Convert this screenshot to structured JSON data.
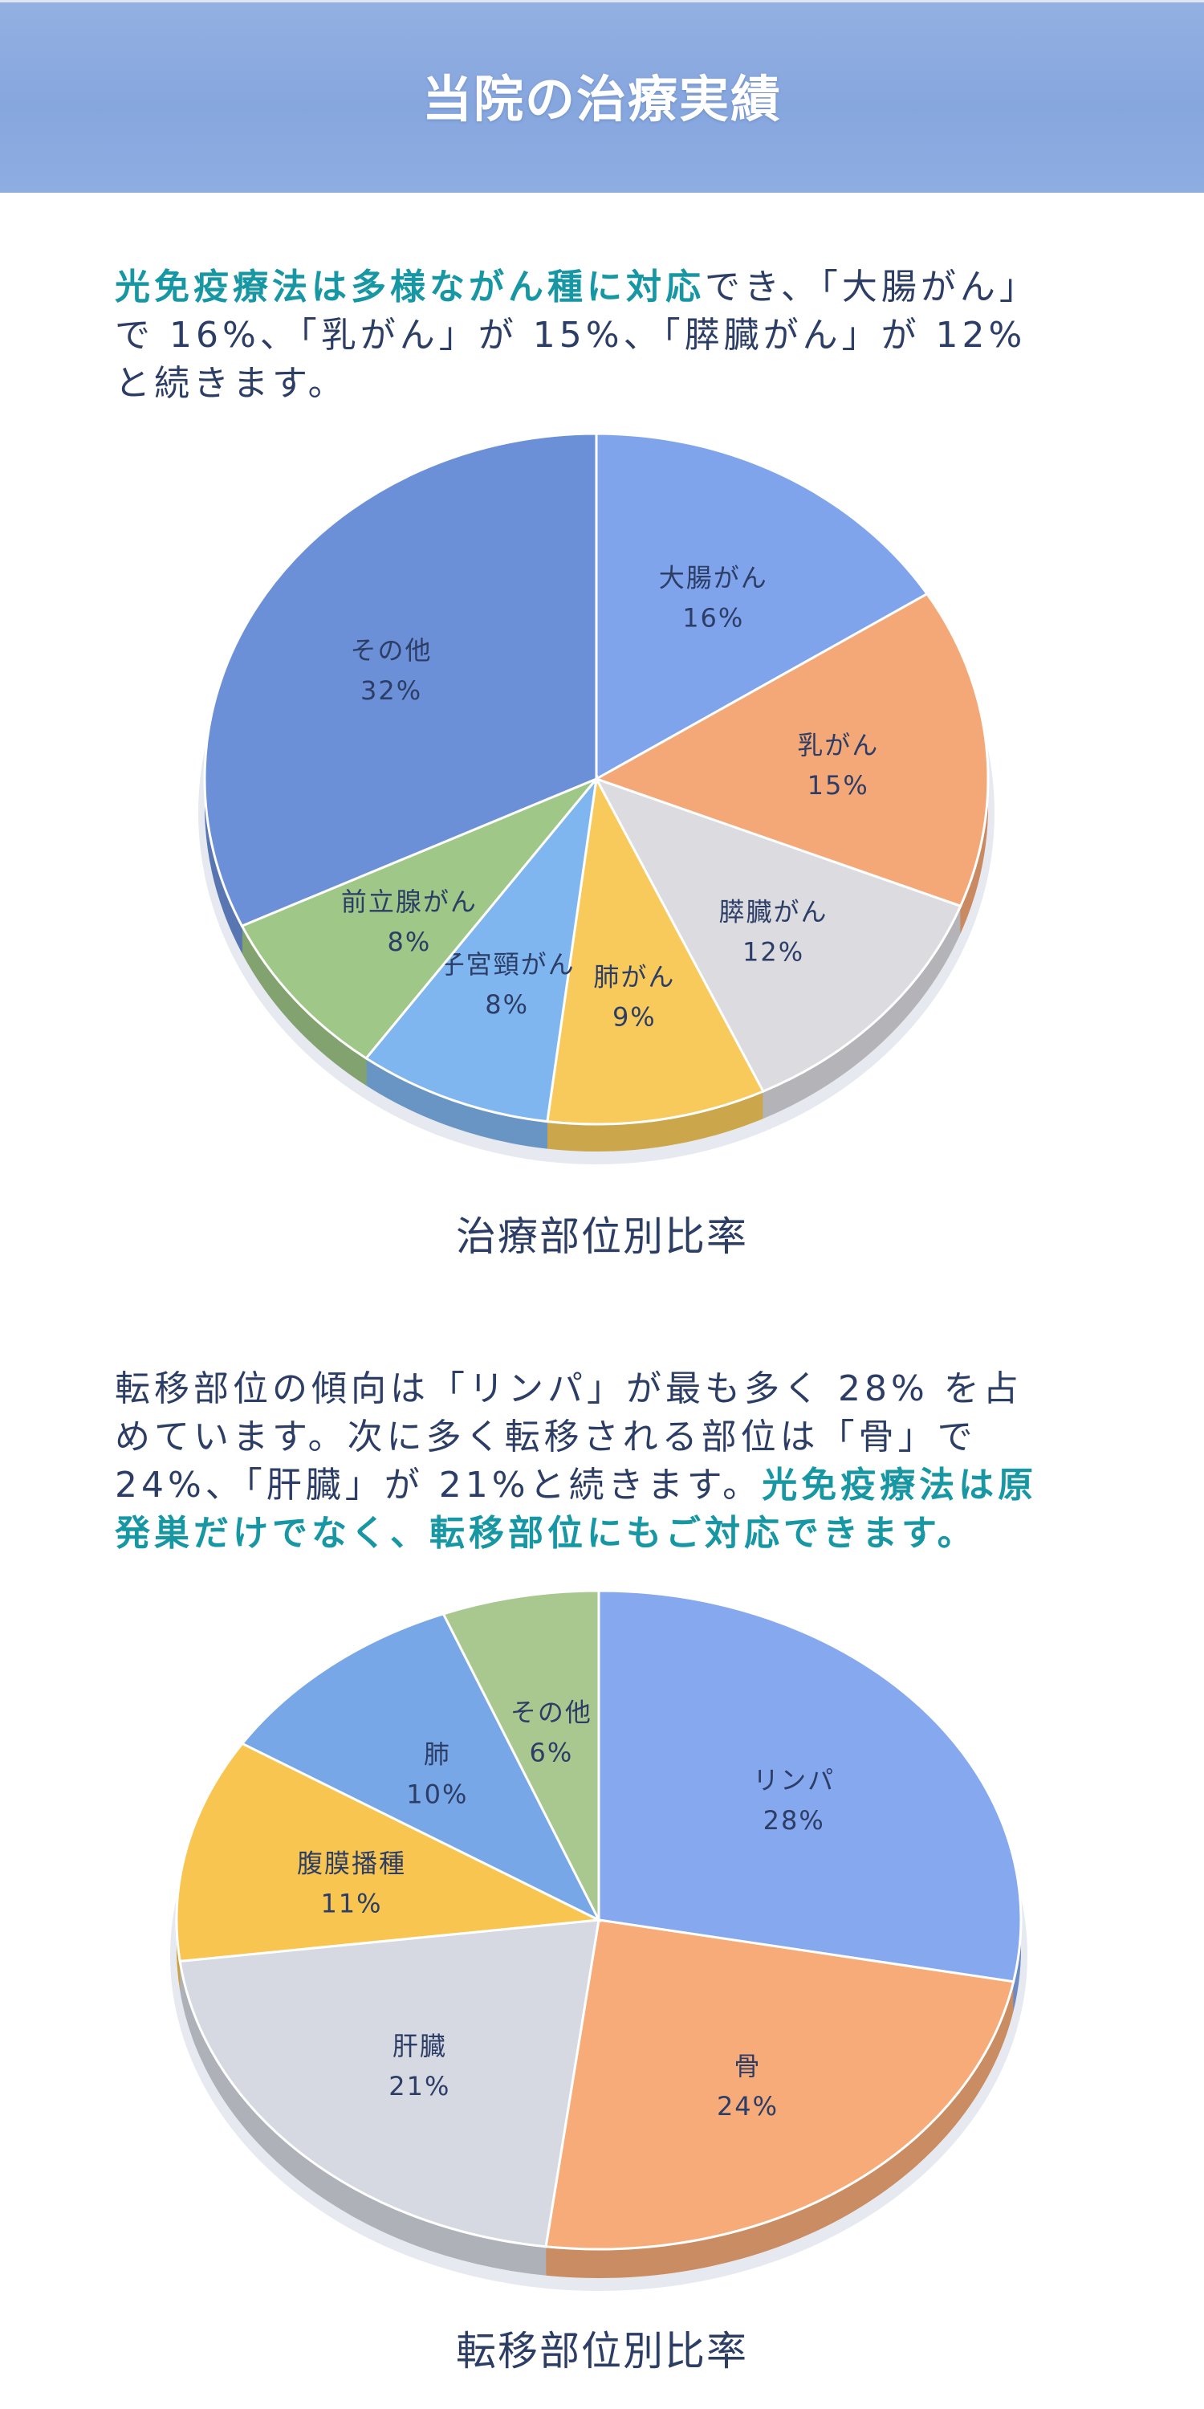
{
  "header": {
    "title": "当院の治療実績"
  },
  "intro1": {
    "lines": [
      [
        {
          "text": "光免疫療法は多様ながん種に対応",
          "hl": true
        },
        {
          "text": "でき、「大腸がん」",
          "hl": false
        }
      ],
      [
        {
          "text": "で 16%、「乳がん」が 15%、「膵臓がん」が 12%",
          "hl": false
        }
      ],
      [
        {
          "text": "と続きます。",
          "hl": false
        }
      ]
    ]
  },
  "intro2": {
    "lines": [
      [
        {
          "text": "転移部位の傾向は「リンパ」が最も多く 28% を占",
          "hl": false
        }
      ],
      [
        {
          "text": "めています。次に多く転移される部位は「骨」で",
          "hl": false
        }
      ],
      [
        {
          "text": "24%、「肝臓」が 21%と続きます。",
          "hl": false
        },
        {
          "text": "光免疫療法は原",
          "hl": true
        }
      ],
      [
        {
          "text": "発巣だけでなく、転移部位にもご対応できます。",
          "hl": true
        }
      ]
    ]
  },
  "colors": {
    "highlight": "#1697a3",
    "text": "#2c3d66",
    "header": "#8aa9df"
  },
  "chart_data": [
    {
      "type": "pie",
      "title": "治療部位別比率",
      "start": "12 o'clock, clockwise",
      "slices": [
        {
          "label": "大腸がん",
          "value": 16,
          "display": "16%",
          "color": "#7fa4ec"
        },
        {
          "label": "乳がん",
          "value": 15,
          "display": "15%",
          "color": "#f5a877"
        },
        {
          "label": "膵臓がん",
          "value": 12,
          "display": "12%",
          "color": "#dcdbe0"
        },
        {
          "label": "肺がん",
          "value": 9,
          "display": "9%",
          "color": "#f8ca5c"
        },
        {
          "label": "子宮頸がん",
          "value": 8,
          "display": "8%",
          "color": "#80b6ef"
        },
        {
          "label": "前立腺がん",
          "value": 8,
          "display": "8%",
          "color": "#9fc787"
        },
        {
          "label": "その他",
          "value": 32,
          "display": "32%",
          "color": "#6c90d8"
        }
      ]
    },
    {
      "type": "pie",
      "title": "転移部位別比率",
      "start": "12 o'clock, clockwise",
      "slices": [
        {
          "label": "リンパ",
          "value": 28,
          "display": "28%",
          "color": "#86a8ef"
        },
        {
          "label": "骨",
          "value": 24,
          "display": "24%",
          "color": "#f6ab78"
        },
        {
          "label": "肝臓",
          "value": 21,
          "display": "21%",
          "color": "#d6d8e2"
        },
        {
          "label": "腹膜播種",
          "value": 11,
          "display": "11%",
          "color": "#f7c550"
        },
        {
          "label": "肺",
          "value": 10,
          "display": "10%",
          "color": "#78a7e7"
        },
        {
          "label": "その他",
          "value": 6,
          "display": "6%",
          "color": "#a9c890"
        }
      ]
    }
  ]
}
